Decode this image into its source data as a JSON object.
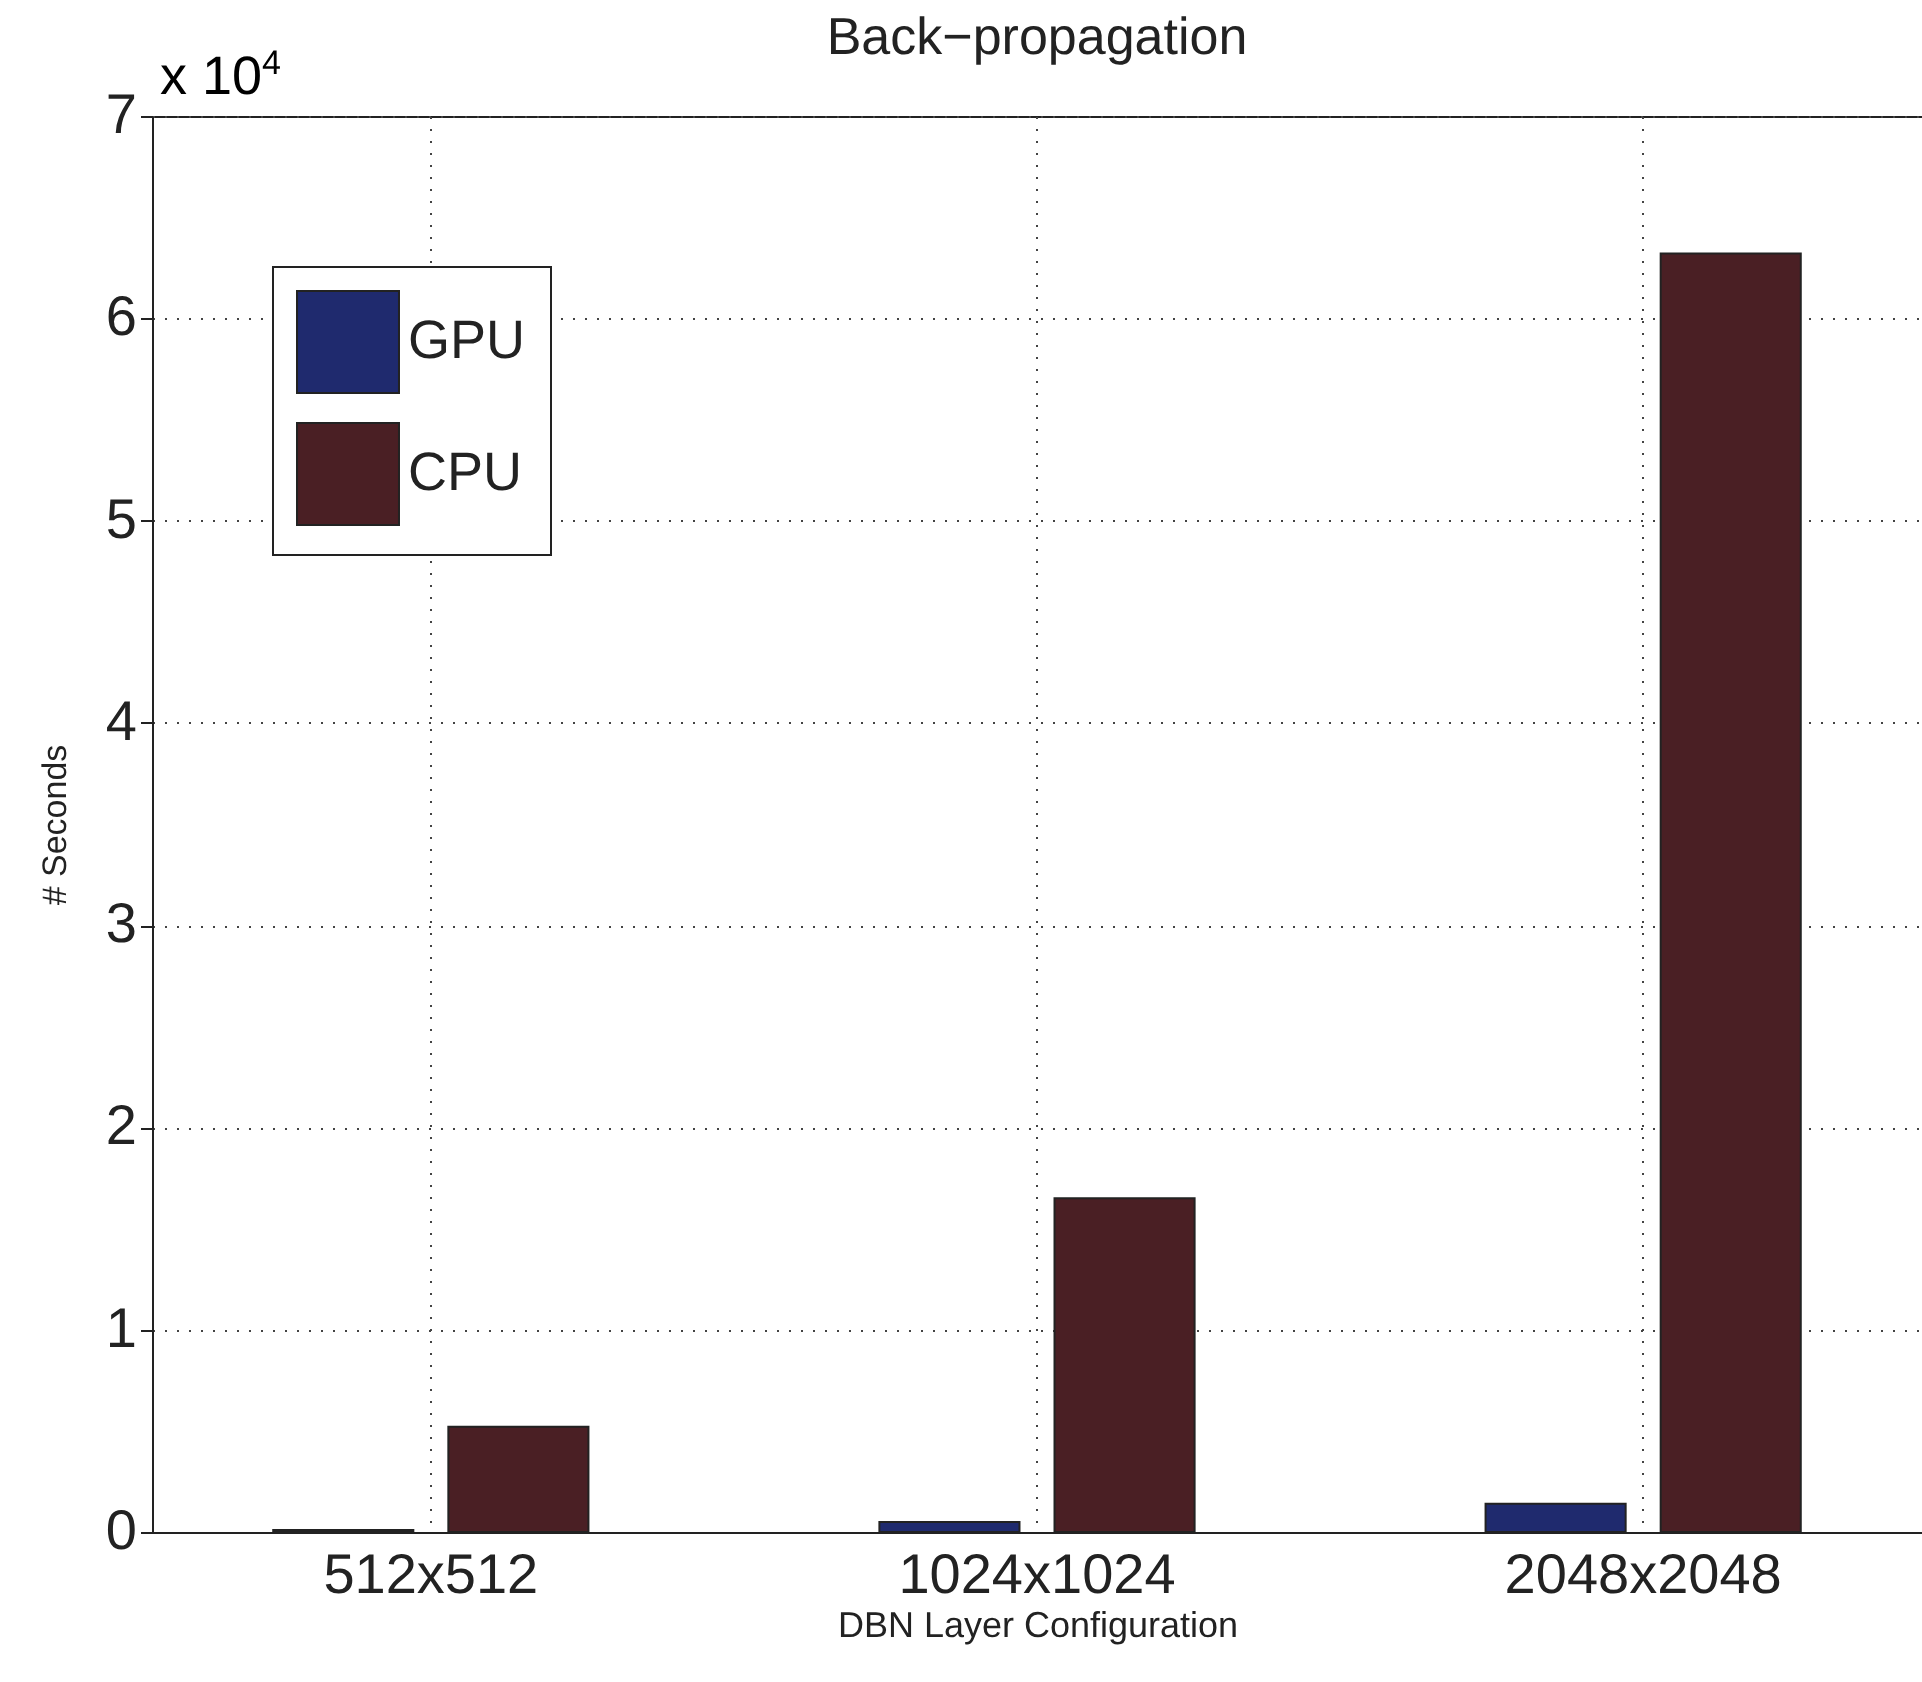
{
  "chart_data": {
    "type": "bar",
    "title": "Back−propagation",
    "xlabel": "DBN Layer Configuration",
    "ylabel": "# Seconds",
    "categories": [
      "512x512",
      "1024x1024",
      "2048x2048"
    ],
    "series": [
      {
        "name": "GPU",
        "color": "#1f2a6e",
        "values": [
          0.01,
          0.05,
          0.14
        ]
      },
      {
        "name": "CPU",
        "color": "#4a1f24",
        "values": [
          0.52,
          1.65,
          6.32
        ]
      }
    ],
    "ylim": [
      0,
      7
    ],
    "yticks": [
      0,
      1,
      2,
      3,
      4,
      5,
      6,
      7
    ],
    "annotations": [
      "x 10$^{4}$"
    ],
    "grid": true,
    "legend": "top left"
  }
}
